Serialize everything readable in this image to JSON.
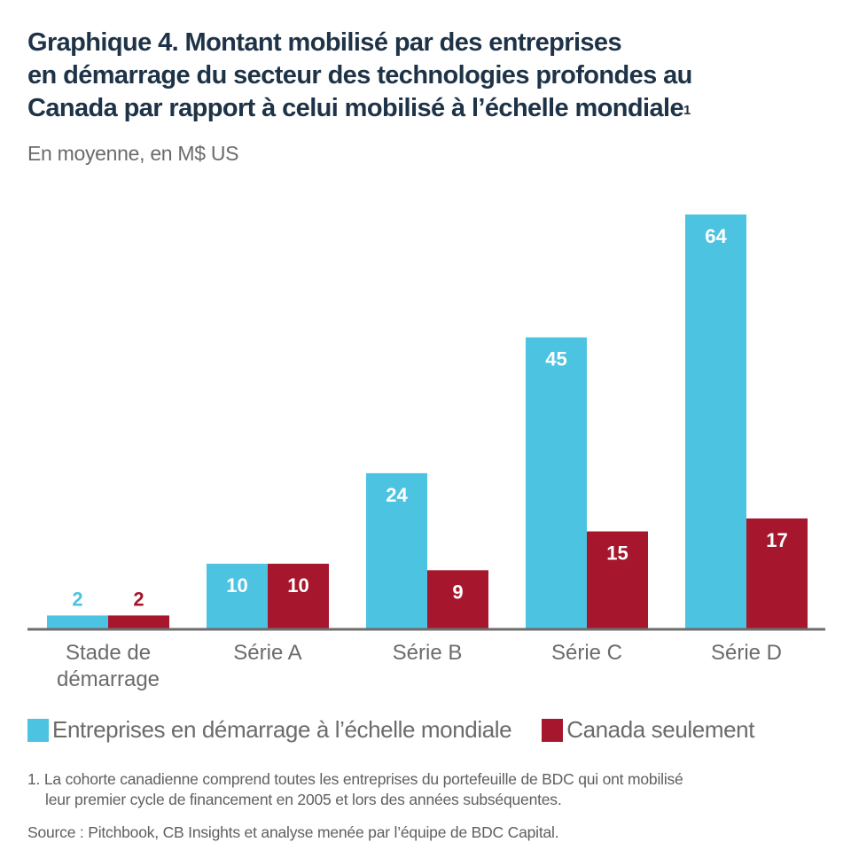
{
  "title": {
    "lines": [
      "Graphique 4. Montant mobilisé par des entreprises",
      "en démarrage du secteur des technologies profondes au",
      "Canada par rapport à celui mobilisé à l’échelle mondiale"
    ],
    "footnote_mark": "1"
  },
  "subtitle": "En moyenne, en M$ US",
  "chart_data": {
    "type": "bar",
    "title": "Graphique 4. Montant mobilisé par des entreprises en démarrage du secteur des technologies profondes au Canada par rapport à celui mobilisé à l’échelle mondiale",
    "subtitle": "En moyenne, en M$ US",
    "xlabel": "",
    "ylabel": "",
    "ylim": [
      0,
      64
    ],
    "grid": false,
    "legend_position": "bottom-left",
    "categories": [
      [
        "Stade de",
        "démarrage"
      ],
      [
        "Série A"
      ],
      [
        "Série B"
      ],
      [
        "Série C"
      ],
      [
        "Série D"
      ]
    ],
    "series": [
      {
        "name": "Entreprises en démarrage à l’échelle mondiale",
        "color": "#4cc3e0",
        "values": [
          2,
          10,
          24,
          45,
          64
        ]
      },
      {
        "name": "Canada seulement",
        "color": "#a6162c",
        "values": [
          2,
          10,
          9,
          15,
          17
        ]
      }
    ]
  },
  "legend": [
    {
      "label": "Entreprises en démarrage à l’échelle mondiale",
      "color": "#4cc3e0"
    },
    {
      "label": "Canada seulement",
      "color": "#a6162c"
    }
  ],
  "footnote": {
    "line1": "1. La cohorte canadienne comprend toutes les entreprises du portefeuille de BDC qui ont mobilisé",
    "line2": "leur premier cycle de financement en 2005 et lors des années subséquentes."
  },
  "source": "Source : Pitchbook, CB Insights et analyse menée par l’équipe de BDC Capital."
}
